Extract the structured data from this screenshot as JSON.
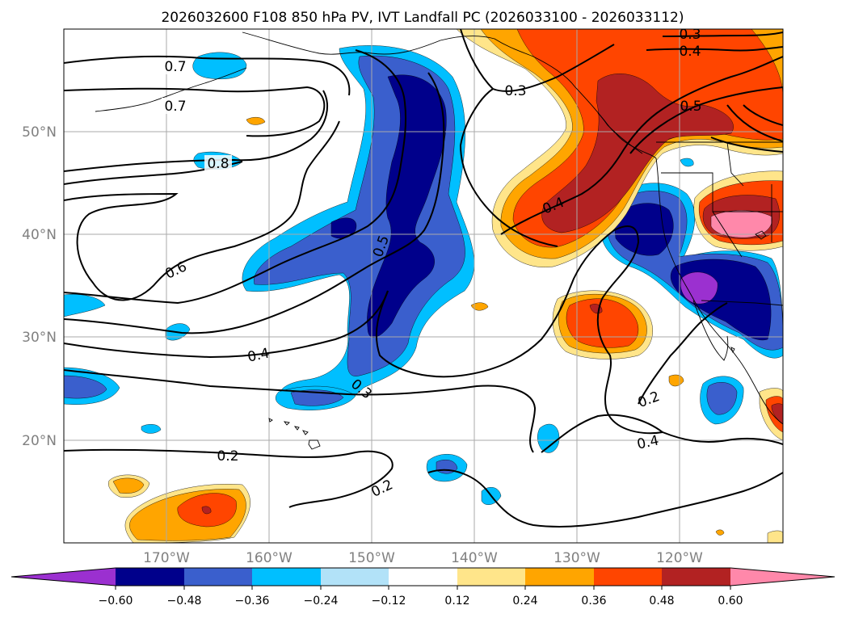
{
  "title": "2026032600 F108 850 hPa PV, IVT Landfall PC (2026033100 - 2026033112)",
  "map": {
    "lat_ticks": [
      "50°N",
      "40°N",
      "30°N",
      "20°N"
    ],
    "lon_ticks": [
      "170°W",
      "160°W",
      "150°W",
      "140°W",
      "130°W",
      "120°W"
    ],
    "contour_labels": [
      "0.7",
      "0.7",
      "0.8",
      "0.6",
      "0.5",
      "0.4",
      "0.3",
      "0.2",
      "0.2",
      "0.3",
      "0.4",
      "0.5",
      "0.3",
      "0.4",
      "0.2",
      "0.4"
    ],
    "contour_color": "#000000"
  },
  "colorbar": {
    "ticks": [
      "−0.60",
      "−0.48",
      "−0.36",
      "−0.24",
      "−0.12",
      "0.12",
      "0.24",
      "0.36",
      "0.48",
      "0.60"
    ],
    "colors": [
      "#9b30d0",
      "#00008b",
      "#3a5fcd",
      "#00bfff",
      "#b2e2f8",
      "#ffffff",
      "#ffe58a",
      "#ffa500",
      "#ff4500",
      "#b22222",
      "#ff88aa"
    ]
  },
  "fill_colors": {
    "neg_light": "#00bfff",
    "neg_mid": "#3a5fcd",
    "neg_dark": "#00008b",
    "neg_extreme": "#9b30d0",
    "pos_light": "#ffe58a",
    "pos_mid": "#ffa500",
    "pos_orange": "#ff4500",
    "pos_dark": "#b22222",
    "pos_extreme": "#ff88aa"
  }
}
